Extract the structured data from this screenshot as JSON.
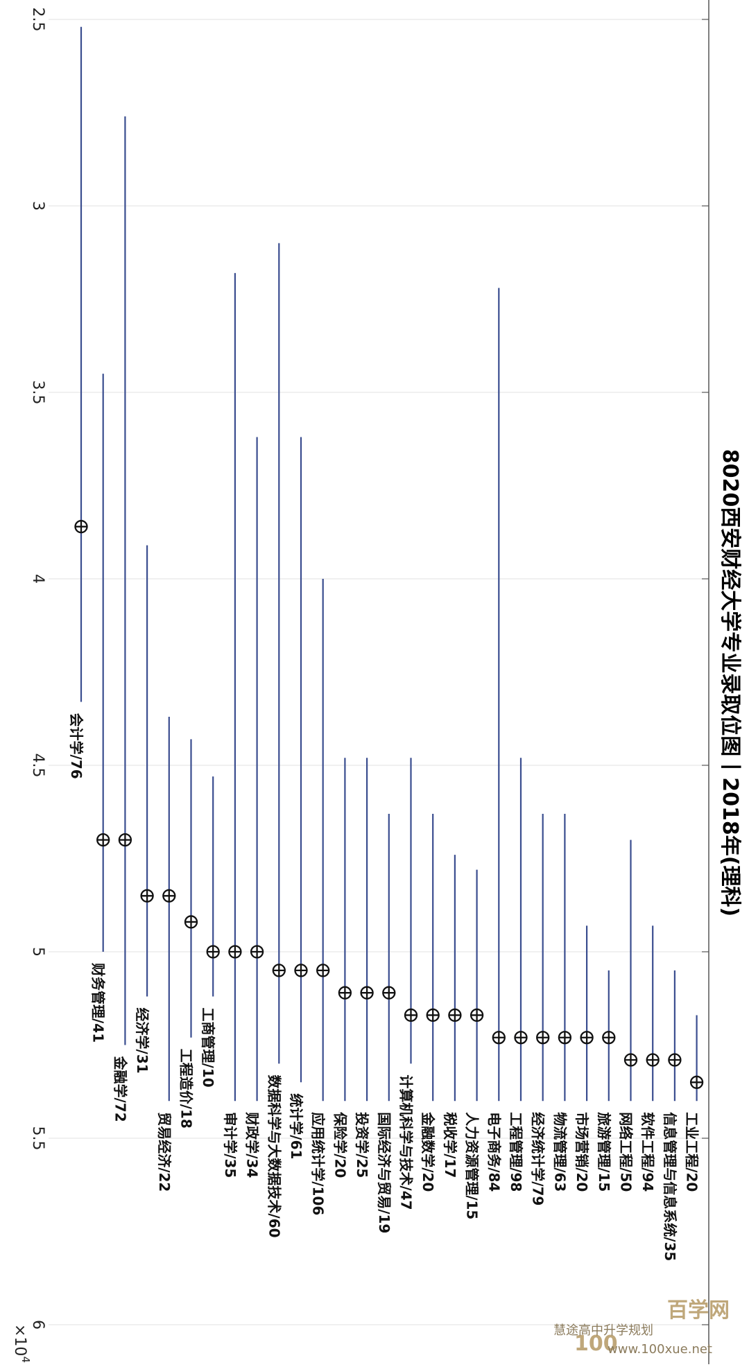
{
  "chart_data": {
    "type": "range",
    "title": "8020西安财经大学专业录取位图丨2018年(理科)",
    "ylabel": "",
    "xlabel": "",
    "value_axis": {
      "min": 2.5,
      "max": 6,
      "ticks": [
        "2.5",
        "3",
        "3.5",
        "4",
        "4.5",
        "5",
        "5.5",
        "6"
      ],
      "multiplier_label": "×10",
      "multiplier_exponent": "4",
      "direction": "increasing-down"
    },
    "grid": true,
    "series_color": "#3a4d8f",
    "marker": "circle-plus",
    "majors": [
      {
        "label": "会计学/76",
        "min": 2.52,
        "max": 4.33,
        "median": 3.86
      },
      {
        "label": "财务管理/41",
        "min": 3.45,
        "max": 5.0,
        "median": 4.7
      },
      {
        "label": "金融学/72",
        "min": 2.76,
        "max": 5.25,
        "median": 4.7
      },
      {
        "label": "经济学/31",
        "min": 3.91,
        "max": 5.12,
        "median": 4.85
      },
      {
        "label": "贸易经济/22",
        "min": 4.37,
        "max": 5.4,
        "median": 4.85
      },
      {
        "label": "工程造价/18",
        "min": 4.43,
        "max": 5.23,
        "median": 4.92
      },
      {
        "label": "工商管理/10",
        "min": 4.53,
        "max": 5.12,
        "median": 5.0
      },
      {
        "label": "审计学/35",
        "min": 3.18,
        "max": 5.4,
        "median": 5.0
      },
      {
        "label": "财政学/34",
        "min": 3.62,
        "max": 5.4,
        "median": 5.0
      },
      {
        "label": "数据科学与大数据技术/60",
        "min": 3.1,
        "max": 5.3,
        "median": 5.05
      },
      {
        "label": "统计学/61",
        "min": 3.62,
        "max": 5.35,
        "median": 5.05
      },
      {
        "label": "应用统计学/106",
        "min": 4.0,
        "max": 5.4,
        "median": 5.05
      },
      {
        "label": "保险学/20",
        "min": 4.48,
        "max": 5.4,
        "median": 5.11
      },
      {
        "label": "投资学/25",
        "min": 4.48,
        "max": 5.4,
        "median": 5.11
      },
      {
        "label": "国际经济与贸易/19",
        "min": 4.63,
        "max": 5.4,
        "median": 5.11
      },
      {
        "label": "计算机科学与技术/47",
        "min": 4.48,
        "max": 5.3,
        "median": 5.17
      },
      {
        "label": "金融数学/20",
        "min": 4.63,
        "max": 5.4,
        "median": 5.17
      },
      {
        "label": "税收学/17",
        "min": 4.74,
        "max": 5.4,
        "median": 5.17
      },
      {
        "label": "人力资源管理/15",
        "min": 4.78,
        "max": 5.4,
        "median": 5.17
      },
      {
        "label": "电子商务/84",
        "min": 3.22,
        "max": 5.4,
        "median": 5.23
      },
      {
        "label": "工程管理/98",
        "min": 4.48,
        "max": 5.4,
        "median": 5.23
      },
      {
        "label": "经济统计学/79",
        "min": 4.63,
        "max": 5.4,
        "median": 5.23
      },
      {
        "label": "物流管理/63",
        "min": 4.63,
        "max": 5.4,
        "median": 5.23
      },
      {
        "label": "市场营销/20",
        "min": 4.93,
        "max": 5.4,
        "median": 5.23
      },
      {
        "label": "旅游管理/15",
        "min": 5.05,
        "max": 5.4,
        "median": 5.23
      },
      {
        "label": "网络工程/50",
        "min": 4.7,
        "max": 5.4,
        "median": 5.29
      },
      {
        "label": "软件工程/94",
        "min": 4.93,
        "max": 5.4,
        "median": 5.29
      },
      {
        "label": "信息管理与信息系统/35",
        "min": 5.05,
        "max": 5.4,
        "median": 5.29
      },
      {
        "label": "工业工程/20",
        "min": 5.17,
        "max": 5.4,
        "median": 5.35
      }
    ]
  },
  "watermark": {
    "logo_text": "100",
    "brand": "百学网",
    "account": "慧途高中升学规划",
    "url": "www.100xue.net"
  }
}
